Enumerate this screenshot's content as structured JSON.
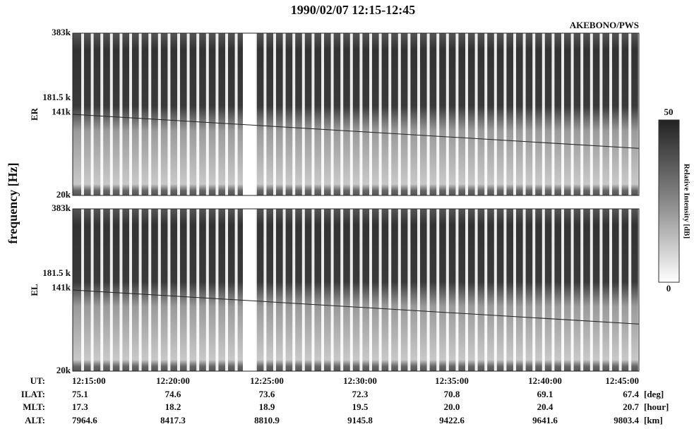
{
  "title": "1990/02/07 12:15-12:45",
  "instrument": "AKEBONO/PWS",
  "y_axis_label": "frequency [Hz]",
  "panels": [
    {
      "label": "ER",
      "yticks": [
        "383k",
        "181.5 k",
        "141k",
        "20k"
      ]
    },
    {
      "label": "EL",
      "yticks": [
        "383k",
        "181.5 k",
        "141k",
        "20k"
      ]
    }
  ],
  "colorbar": {
    "label": "Relative Intensity [dB]",
    "max": "50",
    "min": "0"
  },
  "ephemeris": [
    {
      "label": "UT:",
      "values": [
        "12:15:00",
        "12:20:00",
        "12:25:00",
        "12:30:00",
        "12:35:00",
        "12:40:00",
        "12:45:00"
      ]
    },
    {
      "label": "ILAT:",
      "values": [
        "75.1",
        "74.6",
        "73.6",
        "72.3",
        "70.8",
        "69.1",
        "67.4"
      ],
      "unit": "[deg]"
    },
    {
      "label": "MLT:",
      "values": [
        "17.3",
        "18.2",
        "18.9",
        "19.5",
        "20.0",
        "20.4",
        "20.7"
      ],
      "unit": "[hour]"
    },
    {
      "label": "ALT:",
      "values": [
        "7964.6",
        "8417.3",
        "8810.9",
        "9145.8",
        "9422.6",
        "9641.6",
        "9803.4"
      ],
      "unit": "[km]"
    }
  ]
}
